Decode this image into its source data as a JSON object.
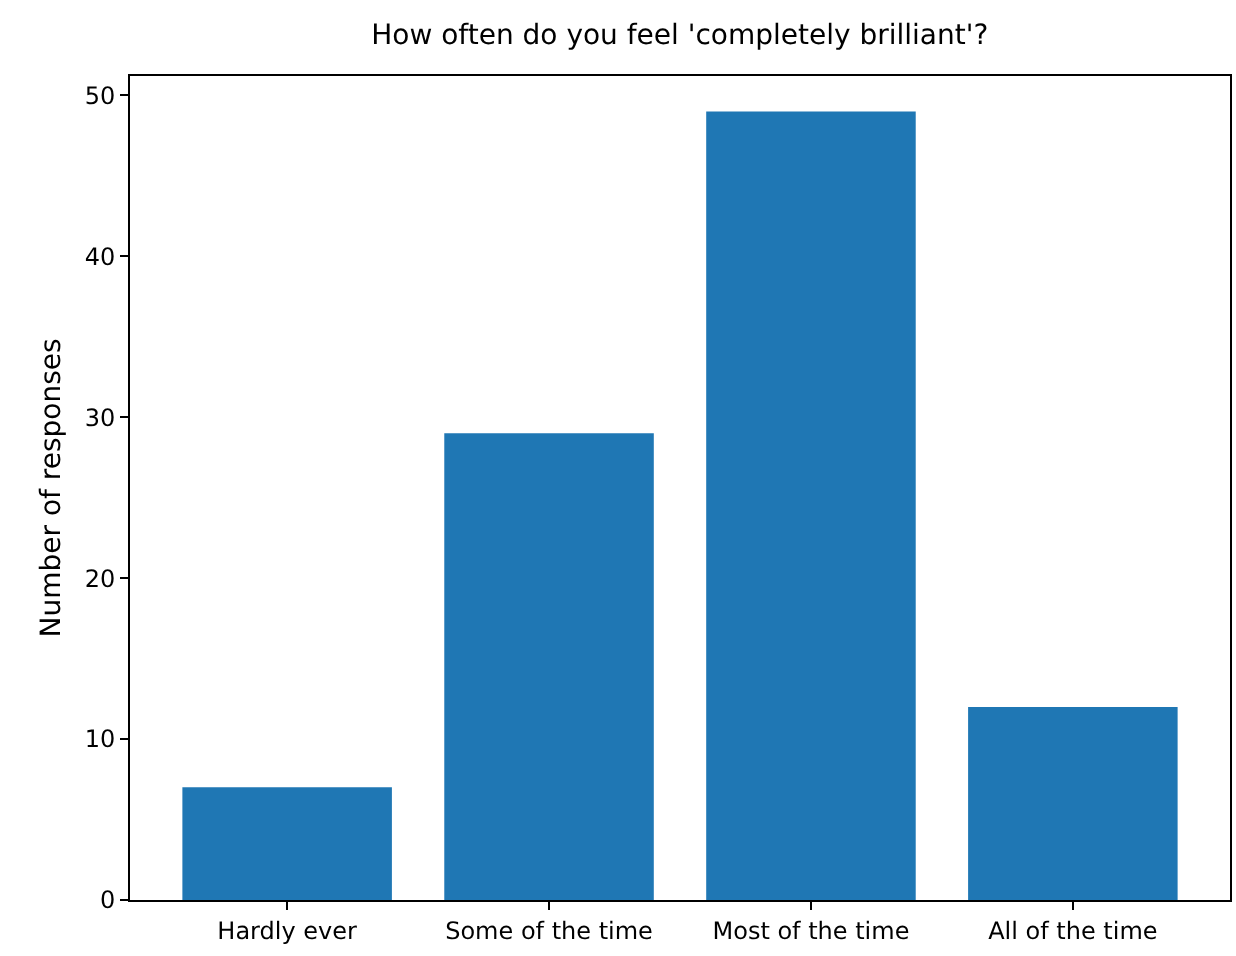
{
  "chart_data": {
    "type": "bar",
    "title": "How often do you feel 'completely brilliant'?",
    "ylabel": "Number of responses",
    "categories": [
      "Hardly ever",
      "Some of the time",
      "Most of the time",
      "All of the time"
    ],
    "values": [
      7,
      29,
      49,
      12
    ],
    "color": "#1f77b4",
    "ylim": [
      0,
      51.2
    ],
    "yticks": [
      0,
      10,
      20,
      30,
      40,
      50
    ]
  }
}
